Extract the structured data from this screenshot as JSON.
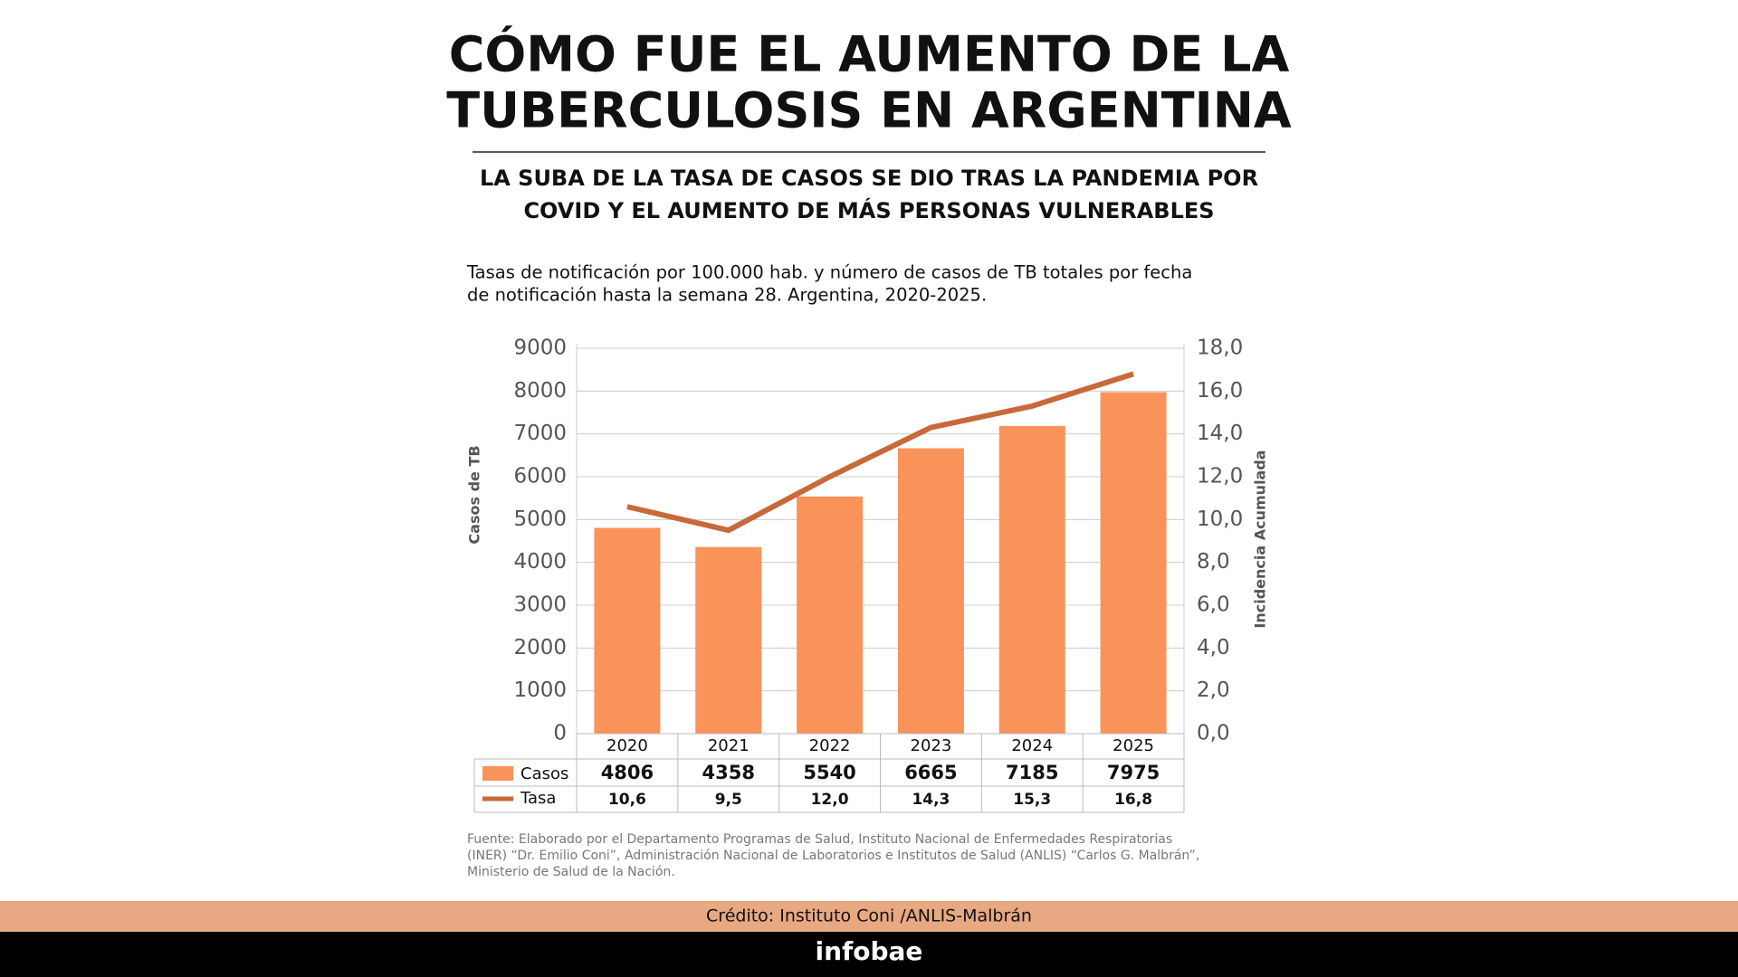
{
  "header": {
    "title": [
      "CÓMO FUE EL AUMENTO DE LA",
      "TUBERCULOSIS EN ARGENTINA"
    ],
    "subtitle": [
      "LA SUBA DE LA TASA DE CASOS SE DIO TRAS LA PANDEMIA POR",
      "COVID Y EL AUMENTO DE MÁS PERSONAS VULNERABLES"
    ],
    "description": [
      "Tasas de notificación por 100.000 hab. y número de casos de TB totales por fecha",
      "de notificación hasta la semana 28. Argentina, 2020-2025."
    ]
  },
  "chart_data": {
    "type": "bar-line",
    "categories": [
      "2020",
      "2021",
      "2022",
      "2023",
      "2024",
      "2025"
    ],
    "series": [
      {
        "name": "Casos",
        "color": "#f9935a",
        "values": [
          4806,
          4358,
          5540,
          6665,
          7185,
          7975
        ]
      },
      {
        "name": "Tasa",
        "color": "#c8693a",
        "axis": "y2",
        "values": [
          10.6,
          9.5,
          12.0,
          14.3,
          15.3,
          16.8
        ],
        "value_labels": [
          "10,6",
          "9,5",
          "12,0",
          "14,3",
          "15,3",
          "16,8"
        ]
      }
    ],
    "ylabel": "Casos de TB",
    "y2label": "Incidencia Acumulada",
    "ylim": [
      0,
      9000
    ],
    "yticks": [
      0,
      1000,
      2000,
      3000,
      4000,
      5000,
      6000,
      7000,
      8000,
      9000
    ],
    "y2lim": [
      0,
      18
    ],
    "y2ticks": [
      {
        "value": 0,
        "label": "0,0"
      },
      {
        "value": 2,
        "label": "2,0"
      },
      {
        "value": 4,
        "label": "4,0"
      },
      {
        "value": 6,
        "label": "6,0"
      },
      {
        "value": 8,
        "label": "8,0"
      },
      {
        "value": 10,
        "label": "10,0"
      },
      {
        "value": 12,
        "label": "12,0"
      },
      {
        "value": 14,
        "label": "14,0"
      },
      {
        "value": 16,
        "label": "16,0"
      },
      {
        "value": 18,
        "label": "18,0"
      }
    ],
    "grid": true
  },
  "footer": {
    "source": [
      "Fuente: Elaborado por el Departamento Programas de Salud, Instituto Nacional de Enfermedades Respiratorias",
      "(INER) “Dr. Emilio Coni”, Administración Nacional de Laboratorios e Institutos de Salud (ANLIS) “Carlos G. Malbrán”,",
      "Ministerio de Salud de la Nación."
    ],
    "credit": "Crédito: Instituto Coni /ANLIS-Malbrán",
    "brand": "infobae"
  }
}
